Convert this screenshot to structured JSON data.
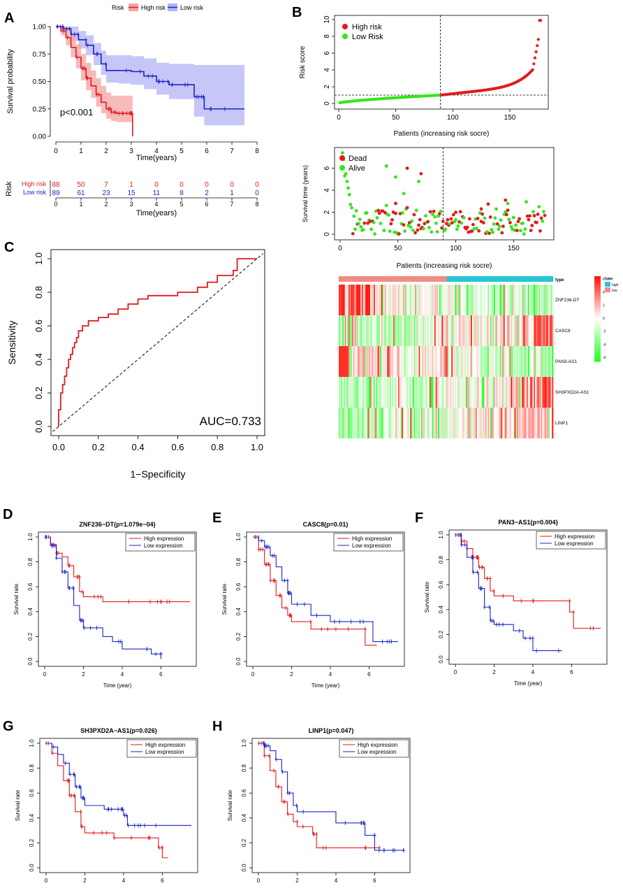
{
  "colors": {
    "high": "#e31a1c",
    "low": "#1a24c8",
    "high_band": "#f4a3a3",
    "low_band": "#b3b3f4",
    "green": "#33e61a",
    "dead": "#e31a1c",
    "alive": "#33e61a",
    "teal": "#26c6d8",
    "salmon": "#f08c84"
  },
  "chart_data": [
    {
      "panel": "A",
      "type": "line",
      "title": "",
      "legend_title": "Risk",
      "legend": [
        "High risk",
        "Low risk"
      ],
      "xlabel": "Time(years)",
      "ylabel": "Survival probability",
      "xlim": [
        0,
        8
      ],
      "ylim": [
        0,
        1
      ],
      "xticks": [
        "0",
        "1",
        "2",
        "3",
        "4",
        "5",
        "6",
        "7",
        "8"
      ],
      "yticks": [
        "0.00",
        "0.25",
        "0.50",
        "0.75",
        "1.00"
      ],
      "annotation": "p<0.001",
      "series": [
        {
          "name": "High risk",
          "x": [
            0,
            0.2,
            0.4,
            0.6,
            0.8,
            1.0,
            1.2,
            1.4,
            1.6,
            1.8,
            2.0,
            2.2,
            2.4,
            2.6,
            2.8,
            3.05,
            3.05
          ],
          "y": [
            1.0,
            0.96,
            0.9,
            0.81,
            0.72,
            0.62,
            0.53,
            0.46,
            0.38,
            0.31,
            0.25,
            0.22,
            0.21,
            0.21,
            0.21,
            0.21,
            0.0
          ],
          "band_upper": [
            1,
            1,
            0.98,
            0.92,
            0.84,
            0.75,
            0.67,
            0.6,
            0.53,
            0.46,
            0.4,
            0.37,
            0.37,
            0.37,
            0.37,
            0.37
          ],
          "band_lower": [
            1,
            0.92,
            0.83,
            0.72,
            0.62,
            0.51,
            0.42,
            0.35,
            0.27,
            0.21,
            0.16,
            0.14,
            0.13,
            0.13,
            0.13,
            0.13
          ]
        },
        {
          "name": "Low risk",
          "x": [
            0,
            0.3,
            0.6,
            0.9,
            1.2,
            1.5,
            1.8,
            2.0,
            2.5,
            3.0,
            3.5,
            4.0,
            4.5,
            5.0,
            5.5,
            5.6,
            5.9,
            6.5,
            7.5
          ],
          "y": [
            1.0,
            0.98,
            0.93,
            0.88,
            0.83,
            0.75,
            0.66,
            0.6,
            0.6,
            0.59,
            0.55,
            0.5,
            0.47,
            0.47,
            0.36,
            0.36,
            0.25,
            0.25,
            0.25
          ],
          "band_upper": [
            1,
            1,
            1,
            0.96,
            0.92,
            0.85,
            0.78,
            0.74,
            0.74,
            0.73,
            0.71,
            0.67,
            0.66,
            0.66,
            0.65,
            0.65,
            0.65,
            0.65,
            0.65
          ],
          "band_lower": [
            1,
            0.96,
            0.87,
            0.8,
            0.74,
            0.65,
            0.56,
            0.49,
            0.48,
            0.47,
            0.43,
            0.38,
            0.34,
            0.34,
            0.18,
            0.18,
            0.1,
            0.1,
            0.1
          ]
        }
      ]
    },
    {
      "panel": "A-table",
      "type": "table",
      "ylabel": "Risk",
      "xlabel": "Time(years)",
      "xticks": [
        "0",
        "1",
        "2",
        "3",
        "4",
        "5",
        "6",
        "7",
        "8"
      ],
      "rows": [
        {
          "name": "High risk",
          "values": [
            "88",
            "50",
            "7",
            "1",
            "0",
            "0",
            "0",
            "0",
            "0"
          ]
        },
        {
          "name": "Low risk",
          "values": [
            "89",
            "61",
            "23",
            "15",
            "11",
            "8",
            "2",
            "1",
            "0"
          ]
        }
      ]
    },
    {
      "panel": "B-top",
      "type": "scatter",
      "xlabel": "Patients (increasing risk socre)",
      "ylabel": "Risk score",
      "legend": [
        "High risk",
        "Low Risk"
      ],
      "xlim": [
        0,
        177
      ],
      "ylim": [
        0,
        10
      ],
      "xticks": [
        "0",
        "50",
        "100",
        "150"
      ],
      "yticks": [
        "0",
        "2",
        "4",
        "6",
        "8",
        "10"
      ],
      "cutoff_x": 89,
      "cutoff_y": 1.0,
      "n": 177
    },
    {
      "panel": "B-mid",
      "type": "scatter",
      "xlabel": "Patients (increasing risk socre)",
      "ylabel": "Survival time (years)",
      "legend": [
        "Dead",
        "Alive"
      ],
      "xlim": [
        0,
        177
      ],
      "ylim": [
        0,
        7.5
      ],
      "xticks": [
        "0",
        "50",
        "100",
        "150"
      ],
      "yticks": [
        "0",
        "2",
        "4",
        "6"
      ],
      "cutoff_x": 89
    },
    {
      "panel": "B-heatmap",
      "type": "heatmap",
      "annotation_label": "type",
      "rows": [
        "ZNF236-DT",
        "CASC8",
        "PAN3-AS1",
        "SH3PXD2A-AS1",
        "LINP1"
      ],
      "legend_title": "type",
      "legend_groups": [
        "high",
        "low"
      ],
      "scale_ticks": [
        "6",
        "4",
        "2",
        "0",
        "-2",
        "-4",
        "-6"
      ]
    },
    {
      "panel": "C",
      "type": "line",
      "xlabel": "1−Specificity",
      "ylabel": "Sensitivity",
      "annotation": "AUC=0.733",
      "xlim": [
        0,
        1
      ],
      "ylim": [
        0,
        1
      ],
      "xticks": [
        "0.0",
        "0.2",
        "0.4",
        "0.6",
        "0.8",
        "1.0"
      ],
      "yticks": [
        "0.0",
        "0.2",
        "0.4",
        "0.6",
        "0.8",
        "1.0"
      ],
      "series": [
        {
          "name": "ROC",
          "x": [
            0,
            0,
            0.01,
            0.01,
            0.02,
            0.02,
            0.03,
            0.03,
            0.04,
            0.04,
            0.05,
            0.05,
            0.06,
            0.06,
            0.07,
            0.07,
            0.08,
            0.08,
            0.09,
            0.09,
            0.1,
            0.1,
            0.12,
            0.12,
            0.15,
            0.15,
            0.2,
            0.2,
            0.25,
            0.25,
            0.3,
            0.3,
            0.35,
            0.35,
            0.4,
            0.4,
            0.45,
            0.45,
            0.6,
            0.6,
            0.7,
            0.7,
            0.75,
            0.75,
            0.8,
            0.8,
            0.88,
            0.88,
            0.9,
            0.9,
            1.0
          ],
          "y": [
            0,
            0.1,
            0.1,
            0.2,
            0.2,
            0.25,
            0.25,
            0.3,
            0.3,
            0.35,
            0.35,
            0.4,
            0.4,
            0.43,
            0.43,
            0.47,
            0.47,
            0.5,
            0.5,
            0.53,
            0.53,
            0.57,
            0.57,
            0.6,
            0.6,
            0.63,
            0.63,
            0.65,
            0.65,
            0.67,
            0.67,
            0.7,
            0.7,
            0.73,
            0.73,
            0.76,
            0.76,
            0.78,
            0.78,
            0.8,
            0.8,
            0.83,
            0.83,
            0.86,
            0.86,
            0.9,
            0.9,
            0.93,
            0.93,
            1.0,
            1.0
          ]
        }
      ]
    },
    {
      "panel": "D",
      "type": "line",
      "title": "ZNF236−DT(p=1.079e−04)",
      "xlabel": "Time (year)",
      "ylabel": "Survival rate",
      "legend": [
        "High expression",
        "Low expression"
      ],
      "xlim": [
        0,
        7.5
      ],
      "ylim": [
        0,
        1
      ],
      "xticks": [
        "0",
        "2",
        "4",
        "6"
      ],
      "yticks": [
        "0.0",
        "0.2",
        "0.4",
        "0.6",
        "0.8",
        "1.0"
      ],
      "series": [
        {
          "name": "High expression",
          "x": [
            0,
            0.3,
            0.6,
            0.9,
            1.2,
            1.5,
            1.8,
            2.0,
            2.5,
            3.0,
            4.0,
            5.0,
            6.0,
            7.5
          ],
          "y": [
            1,
            0.94,
            0.87,
            0.84,
            0.77,
            0.68,
            0.56,
            0.52,
            0.52,
            0.48,
            0.48,
            0.48,
            0.48,
            0.48
          ]
        },
        {
          "name": "Low expression",
          "x": [
            0,
            0.3,
            0.6,
            0.9,
            1.2,
            1.5,
            1.8,
            2.0,
            2.5,
            3.0,
            3.5,
            4.0,
            5.0,
            5.5,
            6.0,
            6.0
          ],
          "y": [
            1,
            0.93,
            0.83,
            0.72,
            0.59,
            0.45,
            0.33,
            0.27,
            0.27,
            0.2,
            0.16,
            0.1,
            0.1,
            0.06,
            0.06,
            0.02
          ]
        }
      ]
    },
    {
      "panel": "E",
      "type": "line",
      "title": "CASC8(p=0.01)",
      "xlabel": "Time (year)",
      "ylabel": "Survival rate",
      "legend": [
        "High expression",
        "Low expression"
      ],
      "xlim": [
        0,
        7.5
      ],
      "ylim": [
        0,
        1
      ],
      "xticks": [
        "0",
        "2",
        "4",
        "6"
      ],
      "yticks": [
        "0.0",
        "0.2",
        "0.4",
        "0.6",
        "0.8",
        "1.0"
      ],
      "series": [
        {
          "name": "High expression",
          "x": [
            0,
            0.3,
            0.6,
            0.9,
            1.2,
            1.5,
            1.8,
            2.0,
            3.0,
            4.0,
            5.0,
            5.8,
            5.8,
            6.4
          ],
          "y": [
            1,
            0.9,
            0.78,
            0.65,
            0.53,
            0.43,
            0.37,
            0.32,
            0.26,
            0.26,
            0.26,
            0.26,
            0.13,
            0.13
          ]
        },
        {
          "name": "Low expression",
          "x": [
            0,
            0.3,
            0.6,
            0.9,
            1.2,
            1.5,
            1.8,
            2.0,
            3.0,
            4.0,
            5.0,
            6.2,
            6.2,
            7.5
          ],
          "y": [
            1,
            0.97,
            0.92,
            0.85,
            0.76,
            0.65,
            0.55,
            0.46,
            0.37,
            0.32,
            0.32,
            0.32,
            0.16,
            0.16
          ]
        }
      ]
    },
    {
      "panel": "F",
      "type": "line",
      "title": "PAN3−AS1(p=0.004)",
      "xlabel": "Time (year)",
      "ylabel": "Survival rate",
      "legend": [
        "High expression",
        "Low expression"
      ],
      "xlim": [
        0,
        7.5
      ],
      "ylim": [
        0,
        1
      ],
      "xticks": [
        "0",
        "2",
        "4",
        "6"
      ],
      "yticks": [
        "0.0",
        "0.2",
        "0.4",
        "0.6",
        "0.8",
        "1.0"
      ],
      "series": [
        {
          "name": "High expression",
          "x": [
            0,
            0.3,
            0.6,
            0.9,
            1.2,
            1.5,
            1.8,
            2.0,
            3.0,
            4.0,
            5.0,
            5.9,
            5.9,
            6.1,
            6.1,
            7.5
          ],
          "y": [
            1,
            0.95,
            0.89,
            0.82,
            0.74,
            0.65,
            0.55,
            0.51,
            0.47,
            0.47,
            0.47,
            0.47,
            0.38,
            0.38,
            0.25,
            0.25
          ]
        },
        {
          "name": "Low expression",
          "x": [
            0,
            0.3,
            0.6,
            0.9,
            1.2,
            1.5,
            1.8,
            2.0,
            2.5,
            3.0,
            3.5,
            4.0,
            4.0,
            5.5
          ],
          "y": [
            1,
            0.92,
            0.82,
            0.7,
            0.57,
            0.42,
            0.31,
            0.28,
            0.28,
            0.23,
            0.17,
            0.17,
            0.07,
            0.07
          ]
        }
      ]
    },
    {
      "panel": "G",
      "type": "line",
      "title": "SH3PXD2A−AS1(p=0.026)",
      "xlabel": "Time (year)",
      "ylabel": "Survival rate",
      "legend": [
        "High expression",
        "Low expression"
      ],
      "xlim": [
        0,
        7.5
      ],
      "ylim": [
        0,
        1
      ],
      "xticks": [
        "0",
        "2",
        "4",
        "6"
      ],
      "yticks": [
        "0.0",
        "0.2",
        "0.4",
        "0.6",
        "0.8",
        "1.0"
      ],
      "series": [
        {
          "name": "High expression",
          "x": [
            0,
            0.3,
            0.6,
            0.9,
            1.2,
            1.5,
            1.8,
            2.0,
            3.0,
            3.5,
            4.0,
            5.0,
            5.5,
            5.8,
            6.0,
            6.0,
            6.3
          ],
          "y": [
            1,
            0.92,
            0.82,
            0.7,
            0.58,
            0.45,
            0.33,
            0.28,
            0.28,
            0.24,
            0.24,
            0.24,
            0.24,
            0.16,
            0.16,
            0.08,
            0.08
          ]
        },
        {
          "name": "Low expression",
          "x": [
            0,
            0.3,
            0.6,
            0.9,
            1.2,
            1.5,
            1.8,
            2.0,
            2.5,
            3.0,
            3.5,
            4.0,
            4.2,
            5.0,
            6.0,
            7.5
          ],
          "y": [
            1,
            0.97,
            0.91,
            0.84,
            0.75,
            0.65,
            0.56,
            0.5,
            0.5,
            0.47,
            0.47,
            0.42,
            0.34,
            0.34,
            0.34,
            0.34
          ]
        }
      ]
    },
    {
      "panel": "H",
      "type": "line",
      "title": "LINP1(p=0.047)",
      "xlabel": "Time (year)",
      "ylabel": "Survival rate",
      "legend": [
        "High expression",
        "Low expression"
      ],
      "xlim": [
        0,
        7.5
      ],
      "ylim": [
        0,
        1
      ],
      "xticks": [
        "0",
        "2",
        "4",
        "6"
      ],
      "yticks": [
        "0.0",
        "0.2",
        "0.4",
        "0.6",
        "0.8",
        "1.0"
      ],
      "series": [
        {
          "name": "High expression",
          "x": [
            0,
            0.3,
            0.6,
            0.9,
            1.2,
            1.5,
            1.8,
            2.0,
            2.8,
            3.0,
            3.0,
            5.0,
            6.3
          ],
          "y": [
            1,
            0.9,
            0.78,
            0.65,
            0.53,
            0.43,
            0.37,
            0.33,
            0.27,
            0.27,
            0.16,
            0.16,
            0.16
          ]
        },
        {
          "name": "Low expression",
          "x": [
            0,
            0.3,
            0.6,
            0.9,
            1.2,
            1.5,
            1.8,
            2.0,
            3.0,
            4.0,
            5.0,
            5.5,
            5.5,
            6.0,
            6.0,
            7.5
          ],
          "y": [
            1,
            0.98,
            0.94,
            0.87,
            0.77,
            0.6,
            0.5,
            0.45,
            0.45,
            0.36,
            0.36,
            0.28,
            0.26,
            0.26,
            0.14,
            0.14
          ]
        }
      ]
    }
  ],
  "labels": {
    "A": "A",
    "B": "B",
    "C": "C",
    "D": "D",
    "E": "E",
    "F": "F",
    "G": "G",
    "H": "H"
  }
}
